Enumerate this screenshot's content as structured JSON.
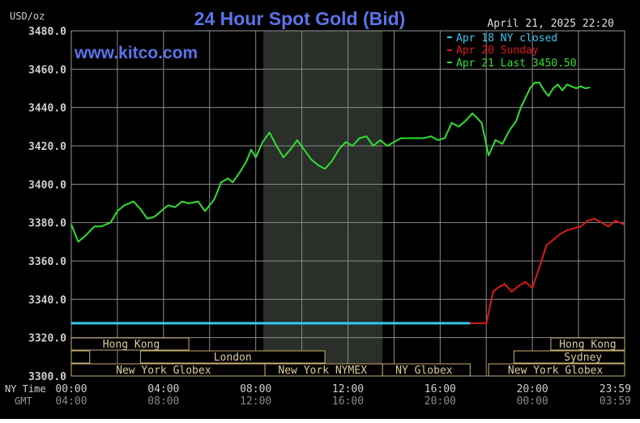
{
  "title": "24 Hour Spot Gold (Bid)",
  "watermark": "www.kitco.com",
  "datetime": "April 21, 2025 22:20",
  "units": "USD/oz",
  "legend": [
    {
      "label": "Apr 18 NY closed",
      "color": "#33c8f0"
    },
    {
      "label": "Apr 20 Sunday",
      "color": "#e01818"
    },
    {
      "label": "Apr 21 Last 3450.50",
      "color": "#30e030"
    }
  ],
  "colors": {
    "background": "#000000",
    "title": "#5a74e8",
    "grid": "#9a9a9a",
    "axis_text": "#cfcfcf",
    "shade": "#2a2f2a",
    "session_box": "#c8b070"
  },
  "chart_data": {
    "type": "line",
    "ylim": [
      3300,
      3480
    ],
    "yticks": [
      3300,
      3320,
      3340,
      3360,
      3380,
      3400,
      3420,
      3440,
      3460,
      3480
    ],
    "ytick_labels": [
      "3300.0",
      "3320.0",
      "3340.0",
      "3360.0",
      "3380.0",
      "3400.0",
      "3420.0",
      "3440.0",
      "3460.0",
      "3480.0"
    ],
    "xlim": [
      0,
      24
    ],
    "x_unit": "hours after 00:00 NY time",
    "ny_time_row_label": "NY Time",
    "gmt_row_label": "GMT",
    "ny_time_labels": [
      "00:00",
      "04:00",
      "08:00",
      "12:00",
      "16:00",
      "20:00",
      "23:59"
    ],
    "gmt_labels": [
      "04:00",
      "08:00",
      "12:00",
      "16:00",
      "20:00",
      "00:00",
      "03:59"
    ],
    "label_hours": [
      0,
      4,
      8,
      12,
      16,
      20,
      23.98
    ],
    "shaded_region": [
      8.33,
      13.5
    ],
    "series": [
      {
        "name": "Apr 18 NY closed",
        "color": "#33c8f0",
        "x": [
          0,
          17.3
        ],
        "y": [
          3327.5,
          3327.5
        ]
      },
      {
        "name": "Apr 20 Sunday",
        "color": "#e01818",
        "x": [
          17.3,
          18.0,
          18.1,
          18.3,
          18.5,
          18.8,
          19.1,
          19.4,
          19.7,
          20.0,
          20.2,
          20.4,
          20.6,
          20.9,
          21.2,
          21.5,
          21.8,
          22.1,
          22.4,
          22.7,
          23.0,
          23.3,
          23.6,
          23.98
        ],
        "y": [
          3327.5,
          3327.5,
          3333,
          3344,
          3346,
          3348,
          3344,
          3347,
          3349,
          3346,
          3353,
          3360,
          3368,
          3371,
          3374,
          3376,
          3377,
          3378,
          3381,
          3382,
          3380,
          3378,
          3381,
          3379
        ]
      },
      {
        "name": "Apr 21",
        "color": "#30e030",
        "x": [
          0,
          0.3,
          0.6,
          1.0,
          1.3,
          1.7,
          2.0,
          2.3,
          2.7,
          3.0,
          3.3,
          3.6,
          3.8,
          4.0,
          4.2,
          4.5,
          4.8,
          5.1,
          5.5,
          5.8,
          6.2,
          6.5,
          6.8,
          7.0,
          7.3,
          7.6,
          7.8,
          8.0,
          8.3,
          8.6,
          8.9,
          9.2,
          9.5,
          9.8,
          10.1,
          10.4,
          10.7,
          11.0,
          11.3,
          11.6,
          11.9,
          12.2,
          12.5,
          12.8,
          13.1,
          13.4,
          13.7,
          14.0,
          14.3,
          14.6,
          15.0,
          15.3,
          15.6,
          15.9,
          16.2,
          16.5,
          16.8,
          17.1,
          17.4,
          17.8,
          18.1,
          18.4,
          18.7,
          19.0,
          19.3,
          19.5,
          19.7,
          19.9,
          20.1,
          20.3,
          20.5,
          20.7,
          20.9,
          21.1,
          21.3,
          21.5,
          21.7,
          21.9,
          22.1,
          22.3,
          22.5
        ],
        "y": [
          3379,
          3370,
          3373,
          3378,
          3378,
          3380,
          3386,
          3389,
          3391,
          3387,
          3382,
          3383,
          3385,
          3387,
          3389,
          3388,
          3391,
          3390,
          3391,
          3386,
          3392,
          3401,
          3403,
          3401,
          3406,
          3412,
          3418,
          3414,
          3422,
          3427,
          3420,
          3414,
          3418,
          3423,
          3418,
          3413,
          3410,
          3408,
          3412,
          3418,
          3422,
          3420,
          3424,
          3425,
          3420,
          3423,
          3420,
          3422,
          3424,
          3424,
          3424,
          3424,
          3425,
          3423,
          3424,
          3432,
          3430,
          3433,
          3437,
          3432,
          3415,
          3423,
          3421,
          3428,
          3433,
          3440,
          3445,
          3450,
          3453,
          3453,
          3449,
          3446,
          3450,
          3452,
          3449,
          3452,
          3451,
          3450,
          3451,
          3450,
          3450.5
        ]
      }
    ],
    "sessions": [
      {
        "label": "Hong Kong",
        "row": 0,
        "segments": [
          [
            0,
            5.1
          ]
        ],
        "label_at": 2.6
      },
      {
        "label": "London",
        "row": 1,
        "segments": [
          [
            0,
            0.8
          ],
          [
            3.0,
            11.0
          ]
        ],
        "label_at": 7.0
      },
      {
        "label": "New York Globex",
        "row": 2,
        "segments": [
          [
            0,
            8.4
          ]
        ],
        "label_at": 4.0
      },
      {
        "label": "New York NYMEX",
        "row": 2,
        "segments": [
          [
            8.4,
            13.5
          ]
        ],
        "label_at": 10.9
      },
      {
        "label": "NY Globex",
        "row": 2,
        "segments": [
          [
            13.5,
            17.3
          ]
        ],
        "label_at": 15.3
      },
      {
        "label": "Hong Kong",
        "row": 0,
        "segments": [
          [
            20.8,
            24
          ]
        ],
        "label_at": 22.4
      },
      {
        "label": "Sydney",
        "row": 1,
        "segments": [
          [
            19.2,
            24
          ]
        ],
        "label_at": 22.2
      },
      {
        "label": "New York Globex",
        "row": 2,
        "segments": [
          [
            18.1,
            24
          ]
        ],
        "label_at": 21.0
      }
    ]
  }
}
